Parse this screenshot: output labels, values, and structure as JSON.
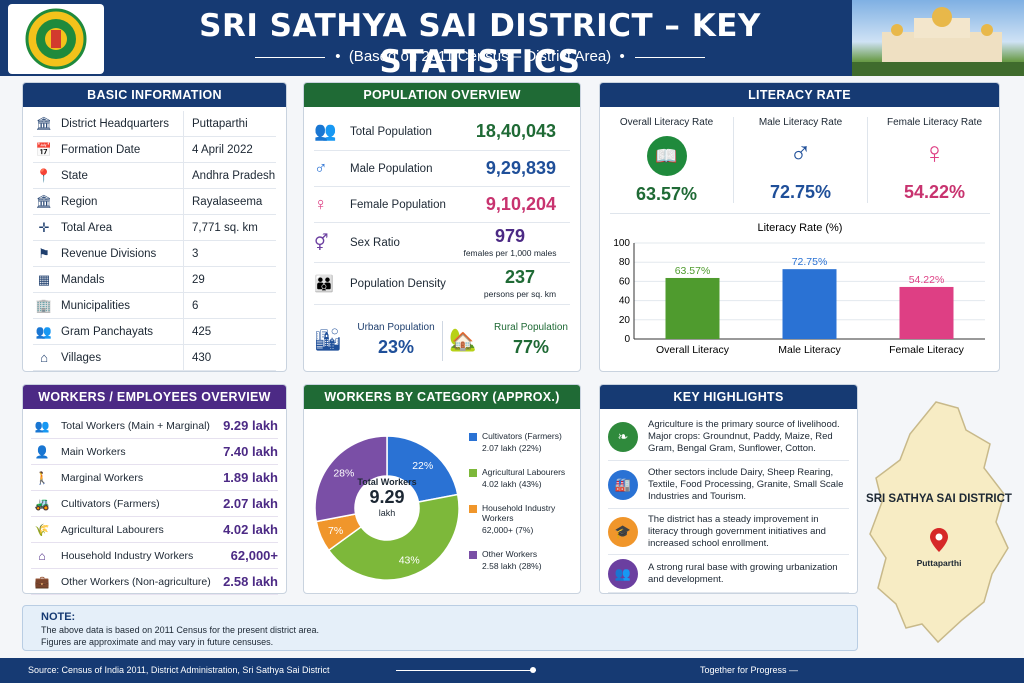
{
  "header": {
    "title": "SRI SATHYA SAI DISTRICT – KEY STATISTICS",
    "subtitle": "(Based on 2011 Census – District Area)"
  },
  "basic": {
    "title": "BASIC INFORMATION",
    "rows": [
      {
        "icon": "building-icon",
        "glyph": "🏛",
        "label": "District Headquarters",
        "value": "Puttaparthi"
      },
      {
        "icon": "calendar-icon",
        "glyph": "📅",
        "label": "Formation Date",
        "value": "4 April 2022"
      },
      {
        "icon": "map-pin-icon",
        "glyph": "📍",
        "label": "State",
        "value": "Andhra Pradesh"
      },
      {
        "icon": "landmark-icon",
        "glyph": "🏛",
        "label": "Region",
        "value": "Rayalaseema"
      },
      {
        "icon": "area-icon",
        "glyph": "✛",
        "label": "Total Area",
        "value": "7,771 sq. km"
      },
      {
        "icon": "org-icon",
        "glyph": "⚑",
        "label": "Revenue Divisions",
        "value": "3"
      },
      {
        "icon": "buildings-icon",
        "glyph": "▦",
        "label": "Mandals",
        "value": "29"
      },
      {
        "icon": "municipal-icon",
        "glyph": "🏢",
        "label": "Municipalities",
        "value": "6"
      },
      {
        "icon": "people-icon",
        "glyph": "👥",
        "label": "Gram Panchayats",
        "value": "425"
      },
      {
        "icon": "home-icon",
        "glyph": "⌂",
        "label": "Villages",
        "value": "430"
      }
    ]
  },
  "population": {
    "title": "POPULATION OVERVIEW",
    "total_label": "Total Population",
    "total": "18,40,043",
    "male_label": "Male Population",
    "male": "9,29,839",
    "female_label": "Female Population",
    "female": "9,10,204",
    "ratio_label": "Sex Ratio",
    "ratio": "979",
    "ratio_unit": "females per 1,000 males",
    "density_label": "Population Density",
    "density": "237",
    "density_unit": "persons per sq. km",
    "urban_label": "Urban Population",
    "urban": "23%",
    "rural_label": "Rural Population",
    "rural": "77%"
  },
  "literacy": {
    "title": "LITERACY RATE",
    "overall_label": "Overall Literacy Rate",
    "overall": "63.57%",
    "male_label": "Male Literacy Rate",
    "male": "72.75%",
    "female_label": "Female Literacy Rate",
    "female": "54.22%"
  },
  "chart_data": {
    "type": "bar",
    "title": "Literacy Rate (%)",
    "categories": [
      "Overall Literacy",
      "Male Literacy",
      "Female Literacy"
    ],
    "values": [
      63.57,
      72.75,
      54.22
    ],
    "labels": [
      "63.57%",
      "72.75%",
      "54.22%"
    ],
    "ylim": [
      0,
      100
    ],
    "yticks": [
      0,
      20,
      40,
      60,
      80,
      100
    ],
    "colors": [
      "#4f9b2e",
      "#2a72d4",
      "#de3f84"
    ]
  },
  "workers": {
    "title": "WORKERS / EMPLOYEES OVERVIEW",
    "rows": [
      {
        "icon": "workers-icon",
        "glyph": "👥",
        "label": "Total Workers (Main + Marginal)",
        "value": "9.29 lakh"
      },
      {
        "icon": "worker-icon",
        "glyph": "👤",
        "label": "Main Workers",
        "value": "7.40 lakh"
      },
      {
        "icon": "person-icon",
        "glyph": "🚶",
        "label": "Marginal Workers",
        "value": "1.89 lakh"
      },
      {
        "icon": "tractor-icon",
        "glyph": "🚜",
        "label": "Cultivators (Farmers)",
        "value": "2.07 lakh"
      },
      {
        "icon": "farm-icon",
        "glyph": "🌾",
        "label": "Agricultural Labourers",
        "value": "4.02 lakh"
      },
      {
        "icon": "house-icon",
        "glyph": "⌂",
        "label": "Household Industry Workers",
        "value": "62,000+"
      },
      {
        "icon": "briefcase-icon",
        "glyph": "💼",
        "label": "Other Workers (Non-agriculture)",
        "value": "2.58 lakh"
      }
    ]
  },
  "category": {
    "title": "WORKERS BY CATEGORY (APPROX.)",
    "center_label": "Total Workers",
    "center_value": "9.29",
    "center_unit": "lakh",
    "slices": [
      {
        "name": "Cultivators (Farmers)",
        "detail": "2.07 lakh (22%)",
        "pct": 22,
        "label": "22%",
        "color": "#2a72d4"
      },
      {
        "name": "Agricultural Labourers",
        "detail": "4.02 lakh (43%)",
        "pct": 43,
        "label": "43%",
        "color": "#7db83a"
      },
      {
        "name": "Household Industry Workers",
        "detail": "62,000+ (7%)",
        "pct": 7,
        "label": "7%",
        "color": "#f0962b"
      },
      {
        "name": "Other Workers",
        "detail": "2.58 lakh (28%)",
        "pct": 28,
        "label": "28%",
        "color": "#7a4fa6"
      }
    ]
  },
  "highlights": {
    "title": "KEY HIGHLIGHTS",
    "items": [
      {
        "icon": "leaf-icon",
        "glyph": "❧",
        "color": "#2f8a3c",
        "text": "Agriculture is the primary source of livelihood. Major crops: Groundnut, Paddy, Maize, Red Gram, Bengal Gram, Sunflower, Cotton."
      },
      {
        "icon": "factory-icon",
        "glyph": "🏭",
        "color": "#2a72d4",
        "text": "Other sectors include Dairy, Sheep Rearing, Textile, Food Processing, Granite, Small Scale Industries and Tourism."
      },
      {
        "icon": "graduation-icon",
        "glyph": "🎓",
        "color": "#f0962b",
        "text": "The district has a steady improvement in literacy through government initiatives and increased school enrollment."
      },
      {
        "icon": "group-icon",
        "glyph": "👥",
        "color": "#6b3fa0",
        "text": "A  strong rural base with growing urbanization and development."
      }
    ]
  },
  "map": {
    "district": "SRI SATHYA SAI DISTRICT",
    "place": "Puttaparthi"
  },
  "note": {
    "title": "NOTE:",
    "line1": "The above data is based on 2011 Census for the present district area.",
    "line2": "Figures are approximate and may vary in future censuses."
  },
  "footer": {
    "source": "Source:  Census of India 2011, District Administration, Sri Sathya Sai District",
    "tagline": "Together for Progress  —"
  }
}
